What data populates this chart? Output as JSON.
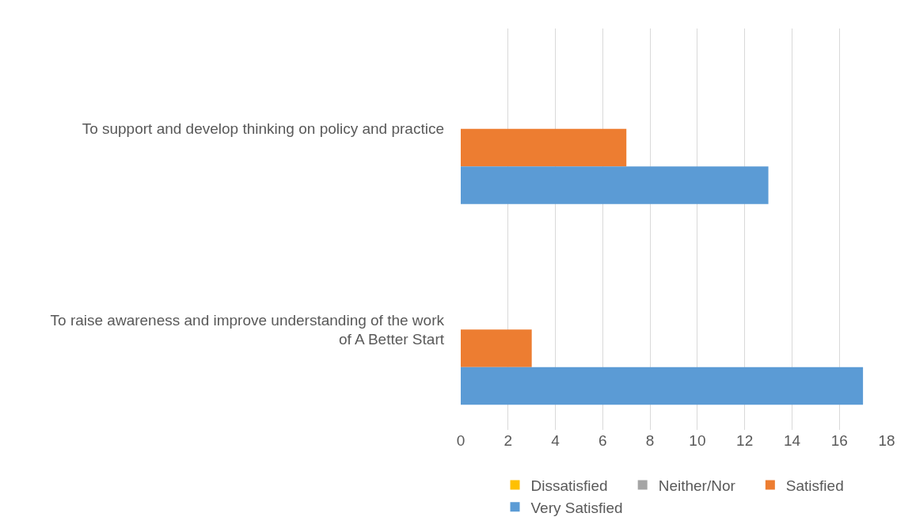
{
  "chart_data": {
    "type": "bar",
    "orientation": "horizontal",
    "categories": [
      "To support and develop thinking on policy and practice",
      "To raise awareness and improve understanding of the work of A Better Start"
    ],
    "series": [
      {
        "name": "Dissatisfied",
        "color": "#ffc000",
        "values": [
          0,
          0
        ]
      },
      {
        "name": "Neither/Nor",
        "color": "#a5a5a5",
        "values": [
          0,
          0
        ]
      },
      {
        "name": "Satisfied",
        "color": "#ed7d31",
        "values": [
          7,
          3
        ]
      },
      {
        "name": "Very Satisfied",
        "color": "#5b9bd5",
        "values": [
          13,
          17
        ]
      }
    ],
    "xlim": [
      0,
      18
    ],
    "xticks": [
      0,
      2,
      4,
      6,
      8,
      10,
      12,
      14,
      16,
      18
    ],
    "grid": "x",
    "legend": "bottom"
  }
}
